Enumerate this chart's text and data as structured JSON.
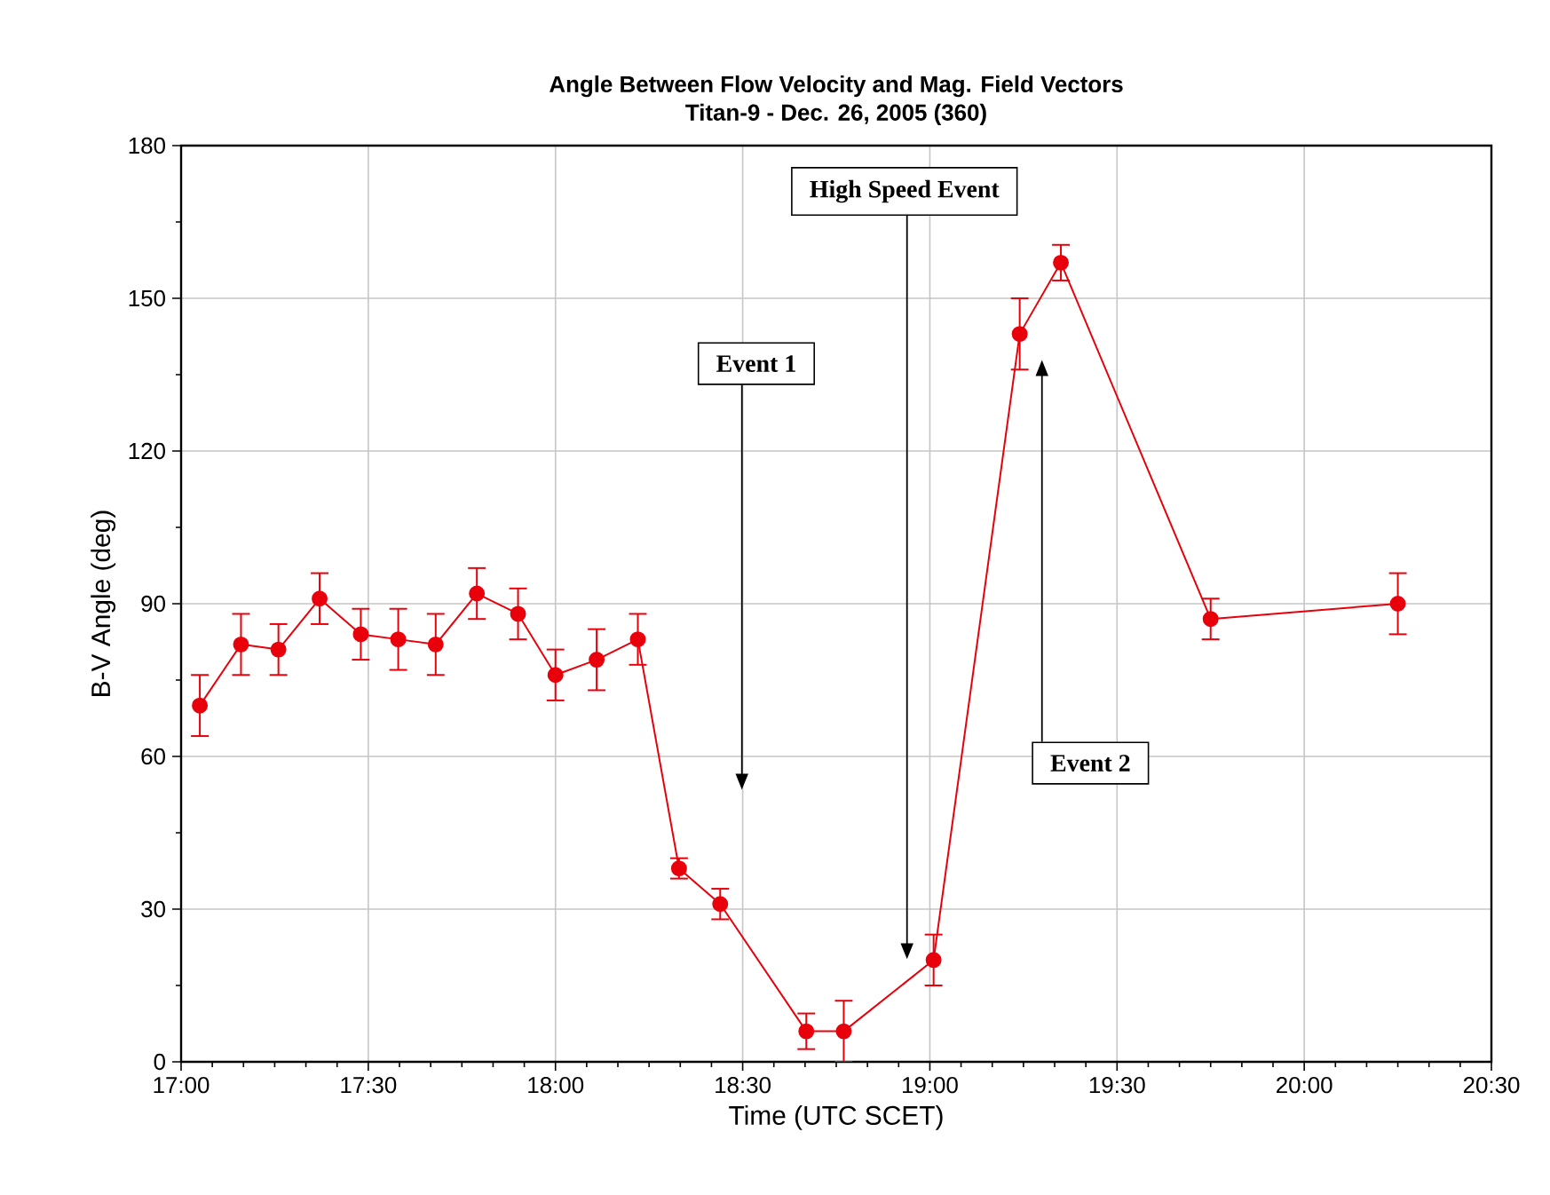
{
  "chart_data": {
    "type": "line",
    "title": "Angle Between Flow Velocity and Mag. Field Vectors",
    "subtitle": "Titan-9 - Dec. 26, 2005 (360)",
    "xlabel": "Time (UTC SCET)",
    "ylabel": "B-V Angle (deg)",
    "x": [
      17.05,
      17.16,
      17.26,
      17.37,
      17.48,
      17.58,
      17.68,
      17.79,
      17.9,
      18.0,
      18.11,
      18.22,
      18.33,
      18.44,
      18.67,
      18.77,
      19.01,
      19.24,
      19.35,
      19.75,
      20.25
    ],
    "series": [
      {
        "color": "#e8000b",
        "values": [
          70,
          82,
          81,
          91,
          84,
          83,
          82,
          92,
          88,
          76,
          79,
          83,
          38,
          31,
          6,
          6,
          20,
          143,
          157,
          87,
          90
        ],
        "errors": [
          6,
          6,
          5,
          5,
          5,
          6,
          6,
          5,
          5,
          5,
          6,
          5,
          2,
          3,
          3.5,
          6,
          5,
          7,
          3.5,
          4,
          6
        ]
      }
    ],
    "xlim": [
      17,
      20.5
    ],
    "ylim": [
      0,
      180
    ],
    "xticks": [
      {
        "value": 17,
        "label": "17:00"
      },
      {
        "value": 17.5,
        "label": "17:30"
      },
      {
        "value": 18,
        "label": "18:00"
      },
      {
        "value": 18.5,
        "label": "18:30"
      },
      {
        "value": 19,
        "label": "19:00"
      },
      {
        "value": 19.5,
        "label": "19:30"
      },
      {
        "value": 20,
        "label": "20:00"
      },
      {
        "value": 20.5,
        "label": "20:30"
      }
    ],
    "yticks": [
      0,
      30,
      60,
      90,
      120,
      150,
      180
    ],
    "annotations": [
      "Event 1",
      "High Speed Event",
      "Event 2"
    ],
    "grid": true,
    "marker": "circle",
    "line_style": "solid"
  }
}
